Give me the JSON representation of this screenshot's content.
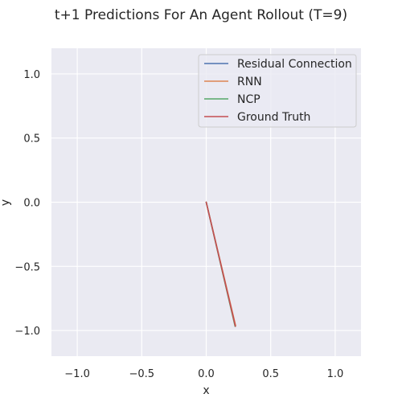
{
  "chart_data": {
    "type": "line",
    "title": "t+1 Predictions For An Agent Rollout (T=9)",
    "xlabel": "x",
    "ylabel": "y",
    "xlim": [
      -1.2,
      1.2
    ],
    "ylim": [
      -1.2,
      1.2
    ],
    "xticks": [
      -1.0,
      -0.5,
      0.0,
      0.5,
      1.0
    ],
    "xtick_labels": [
      "−1.0",
      "−0.5",
      "0.0",
      "0.5",
      "1.0"
    ],
    "yticks": [
      -1.0,
      -0.5,
      0.0,
      0.5,
      1.0
    ],
    "ytick_labels": [
      "−1.0",
      "−0.5",
      "0.0",
      "0.5",
      "1.0"
    ],
    "grid": true,
    "legend_position": "top-right",
    "series": [
      {
        "name": "Residual Connection",
        "color": "#4c72b0",
        "x": [
          0.0,
          0.225
        ],
        "y": [
          0.0,
          -0.965
        ]
      },
      {
        "name": "RNN",
        "color": "#dd8452",
        "x": [
          0.0,
          0.228
        ],
        "y": [
          0.0,
          -0.962
        ]
      },
      {
        "name": "NCP",
        "color": "#55a868",
        "x": [
          0.0,
          0.224
        ],
        "y": [
          0.0,
          -0.968
        ]
      },
      {
        "name": "Ground Truth",
        "color": "#c44e52",
        "x": [
          0.0,
          0.226
        ],
        "y": [
          0.0,
          -0.966
        ]
      }
    ]
  }
}
